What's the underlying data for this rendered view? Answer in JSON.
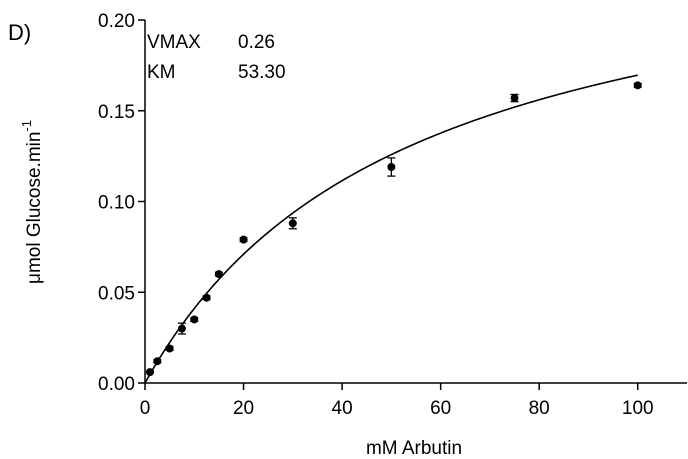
{
  "panel_label": "D)",
  "params": [
    {
      "name": "VMAX",
      "value": "0.26"
    },
    {
      "name": "KM",
      "value": "53.30"
    }
  ],
  "chart_data": {
    "type": "scatter",
    "xlabel": "mM Arbutin",
    "ylabel": "μmol Glucose.min",
    "ylabel_superscript": "-1",
    "xlim": [
      0,
      110
    ],
    "ylim": [
      0,
      0.2
    ],
    "xticks": [
      0,
      20,
      40,
      60,
      80,
      100
    ],
    "yticks": [
      0,
      0.05,
      0.1,
      0.15,
      0.2
    ],
    "xtick_labels": [
      "0",
      "20",
      "40",
      "60",
      "80",
      "100"
    ],
    "ytick_labels": [
      "0.00",
      "0.05",
      "0.10",
      "0.15",
      "0.20"
    ],
    "grid": false,
    "points": [
      {
        "x": 1,
        "y": 0.006,
        "err": 0.0005
      },
      {
        "x": 2.5,
        "y": 0.012,
        "err": 0.0008
      },
      {
        "x": 5,
        "y": 0.019,
        "err": 0.001
      },
      {
        "x": 7.5,
        "y": 0.03,
        "err": 0.003
      },
      {
        "x": 10,
        "y": 0.035,
        "err": 0.001
      },
      {
        "x": 12.5,
        "y": 0.047,
        "err": 0.001
      },
      {
        "x": 15,
        "y": 0.06,
        "err": 0.001
      },
      {
        "x": 20,
        "y": 0.079,
        "err": 0.001
      },
      {
        "x": 30,
        "y": 0.088,
        "err": 0.003
      },
      {
        "x": 50,
        "y": 0.119,
        "err": 0.005
      },
      {
        "x": 75,
        "y": 0.157,
        "err": 0.002
      },
      {
        "x": 100,
        "y": 0.164,
        "err": 0.001
      }
    ],
    "fit": {
      "model": "michaelis-menten",
      "vmax": 0.26,
      "km": 53.3,
      "x_range": [
        0,
        100
      ]
    }
  }
}
